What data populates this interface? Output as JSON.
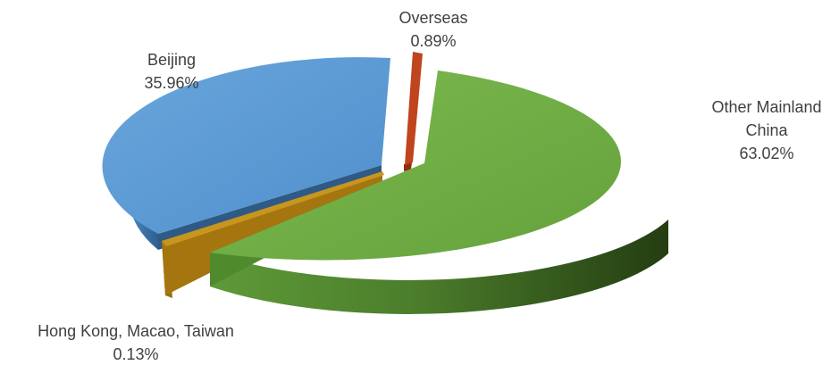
{
  "chart_data": {
    "type": "pie",
    "style": "3d-exploded",
    "title": "",
    "slices": [
      {
        "key": "bj",
        "label": "Beijing",
        "value_text": "35.96%",
        "value": 35.96,
        "color": "#5b9bd5"
      },
      {
        "key": "hk",
        "label": "Hong Kong, Macao, Taiwan",
        "value_text": "0.13%",
        "value": 0.13,
        "color": "#c8961e"
      },
      {
        "key": "om",
        "label": "Other Mainland China",
        "value_text": "63.02%",
        "value": 63.02,
        "color": "#70ad47"
      },
      {
        "key": "ov",
        "label": "Overseas",
        "value_text": "0.89%",
        "value": 0.89,
        "color": "#c0441e"
      }
    ],
    "labels": {
      "bj": {
        "name": "Beijing",
        "pct": "35.96%"
      },
      "hk": {
        "name": "Hong Kong, Macao, Taiwan",
        "pct": "0.13%"
      },
      "om": {
        "name_line1": "Other Mainland",
        "name_line2": "China",
        "pct": "63.02%"
      },
      "ov": {
        "name": "Overseas",
        "pct": "0.89%"
      }
    }
  }
}
